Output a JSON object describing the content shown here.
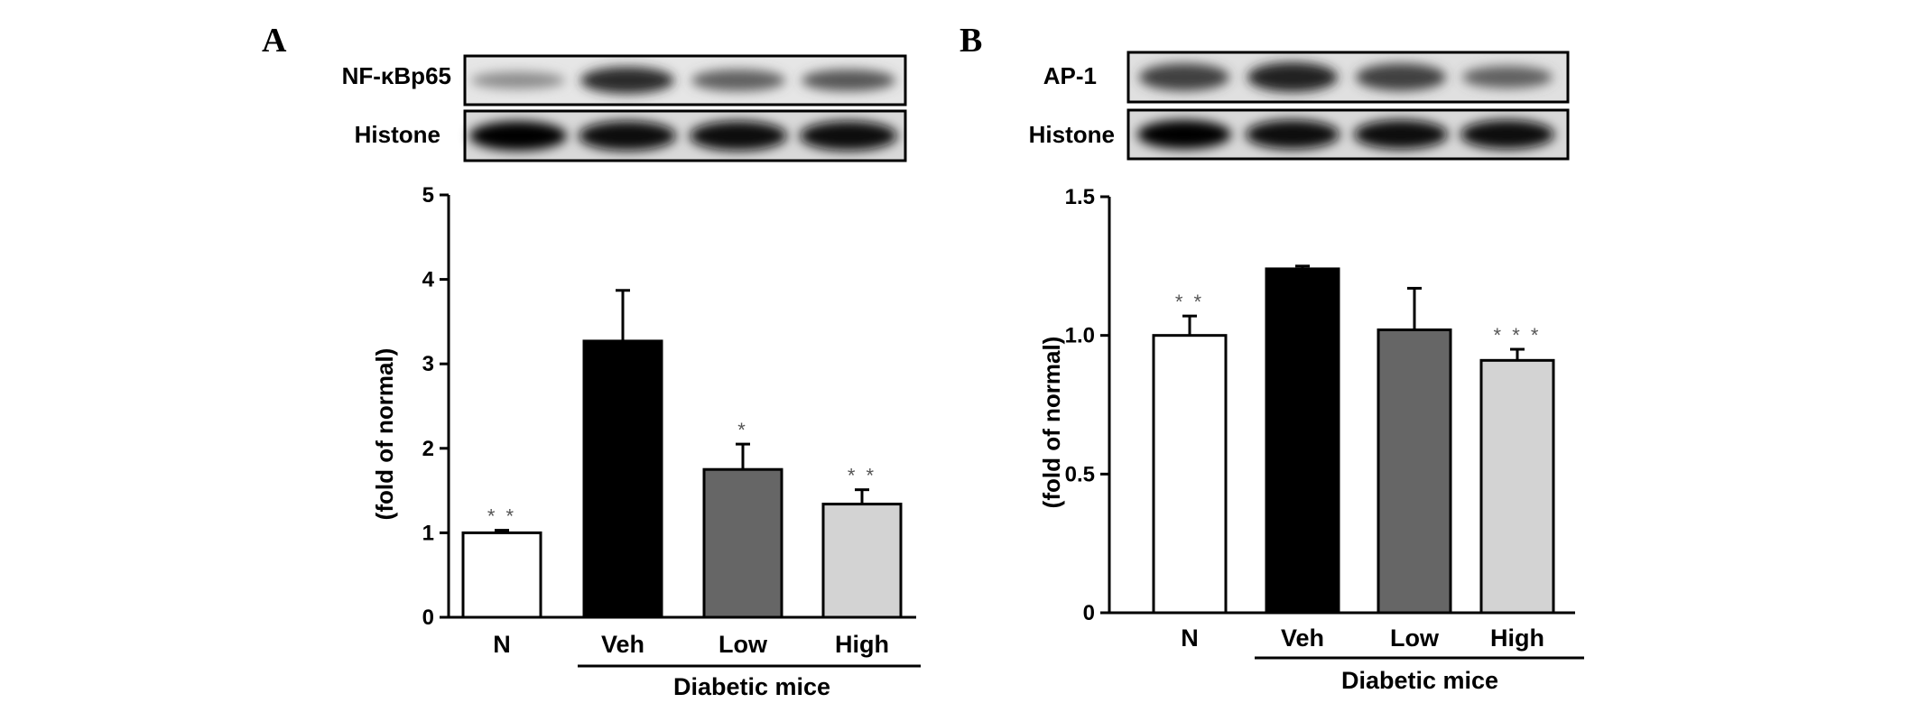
{
  "panels": [
    {
      "letter": "A",
      "blots": [
        {
          "label": "NF-κBp65",
          "band_intensity": [
            0.35,
            0.8,
            0.55,
            0.6
          ],
          "band_height": [
            0.35,
            0.55,
            0.45,
            0.45
          ]
        },
        {
          "label": "Histone",
          "band_intensity": [
            1.0,
            0.95,
            0.95,
            0.95
          ],
          "band_height": [
            0.6,
            0.6,
            0.6,
            0.6
          ]
        }
      ]
    },
    {
      "letter": "B",
      "blots": [
        {
          "label": "AP-1",
          "band_intensity": [
            0.7,
            0.85,
            0.7,
            0.55
          ],
          "band_height": [
            0.55,
            0.6,
            0.55,
            0.45
          ]
        },
        {
          "label": "Histone",
          "band_intensity": [
            1.0,
            0.95,
            0.95,
            0.95
          ],
          "band_height": [
            0.6,
            0.6,
            0.6,
            0.6
          ]
        }
      ]
    }
  ],
  "chart_data": [
    {
      "type": "bar",
      "panel": "A",
      "categories": [
        "N",
        "Veh",
        "Low",
        "High"
      ],
      "values": [
        1.0,
        3.27,
        1.75,
        1.34
      ],
      "errors": [
        0.03,
        0.6,
        0.3,
        0.17
      ],
      "significance": [
        "* *",
        "",
        "*",
        "* *"
      ],
      "bar_colors": [
        "#ffffff",
        "#000000",
        "#666666",
        "#d3d3d3"
      ],
      "ylabel": "(fold of normal)",
      "ylim": [
        0,
        5
      ],
      "yticks": [
        "0",
        "1",
        "2",
        "3",
        "4",
        "5"
      ],
      "group_label": "Diabetic mice"
    },
    {
      "type": "bar",
      "panel": "B",
      "categories": [
        "N",
        "Veh",
        "Low",
        "High"
      ],
      "values": [
        1.0,
        1.24,
        1.02,
        0.91
      ],
      "errors": [
        0.07,
        0.01,
        0.15,
        0.04
      ],
      "significance": [
        "* *",
        "",
        "",
        "* * *"
      ],
      "bar_colors": [
        "#ffffff",
        "#000000",
        "#666666",
        "#d3d3d3"
      ],
      "ylabel": "(fold of normal)",
      "ylim": [
        0,
        1.5
      ],
      "yticks": [
        "0",
        "0.5",
        "1.0",
        "1.5"
      ],
      "group_label": "Diabetic mice"
    }
  ]
}
